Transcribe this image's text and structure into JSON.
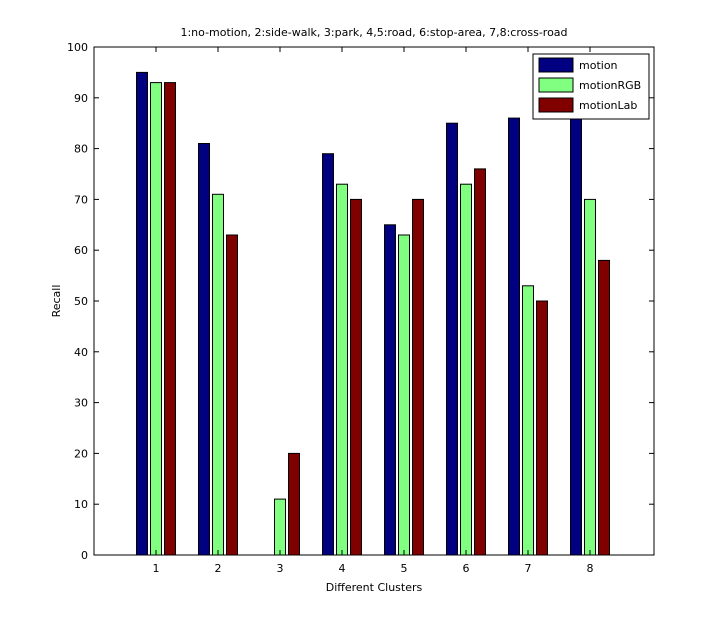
{
  "chart_data": {
    "type": "bar",
    "title": "1:no-motion, 2:side-walk, 3:park, 4,5:road, 6:stop-area, 7,8:cross-road",
    "xlabel": "Different Clusters",
    "ylabel": "Recall",
    "categories": [
      "1",
      "2",
      "3",
      "4",
      "5",
      "6",
      "7",
      "8"
    ],
    "ylim": [
      0,
      100
    ],
    "yticks": [
      0,
      10,
      20,
      30,
      40,
      50,
      60,
      70,
      80,
      90,
      100
    ],
    "grid": false,
    "legend_position": "top-right",
    "series": [
      {
        "name": "motion",
        "color": "#000080",
        "values": [
          95,
          81,
          0,
          79,
          65,
          85,
          86,
          86
        ]
      },
      {
        "name": "motionRGB",
        "color": "#80ff80",
        "values": [
          93,
          71,
          11,
          73,
          63,
          73,
          53,
          70
        ]
      },
      {
        "name": "motionLab",
        "color": "#800000",
        "values": [
          93,
          63,
          20,
          70,
          70,
          76,
          50,
          58
        ]
      }
    ]
  }
}
